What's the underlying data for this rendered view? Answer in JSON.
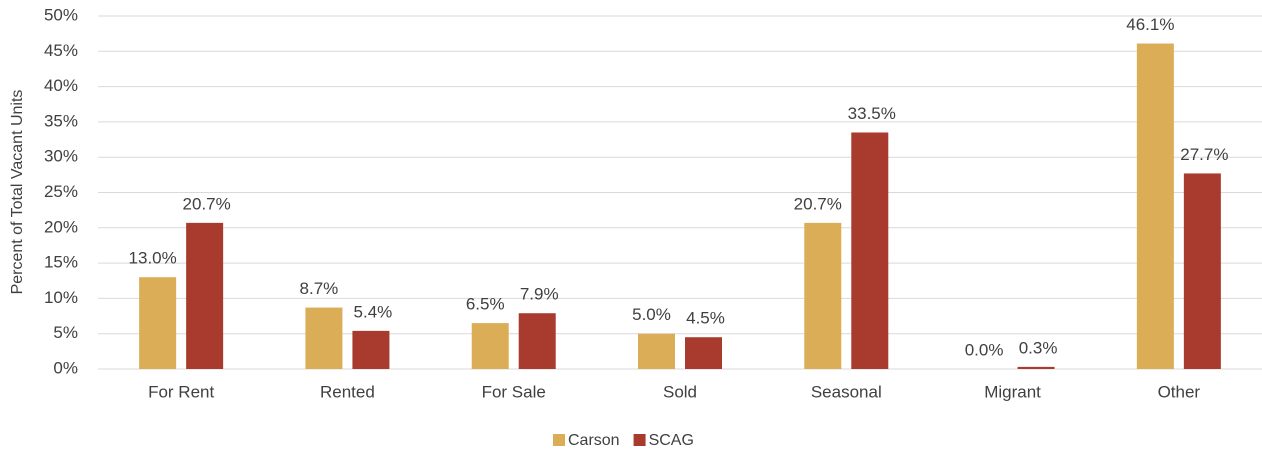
{
  "chart_data": {
    "type": "bar",
    "y_label": "Percent of Total Vacant Units",
    "categories": [
      "For Rent",
      "Rented",
      "For Sale",
      "Sold",
      "Seasonal",
      "Migrant",
      "Other"
    ],
    "series": [
      {
        "name": "Carson",
        "color": "#dbad57",
        "values": [
          13.0,
          8.7,
          6.5,
          5.0,
          20.7,
          0.0,
          46.1
        ],
        "value_labels": [
          "13.0%",
          "8.7%",
          "6.5%",
          "5.0%",
          "20.7%",
          "0.0%",
          "46.1%"
        ]
      },
      {
        "name": "SCAG",
        "color": "#a83a2e",
        "values": [
          20.7,
          5.4,
          7.9,
          4.5,
          33.5,
          0.3,
          27.7
        ],
        "value_labels": [
          "20.7%",
          "5.4%",
          "7.9%",
          "4.5%",
          "33.5%",
          "0.3%",
          "27.7%"
        ]
      }
    ],
    "ylim": [
      0,
      50
    ],
    "yticks": [
      {
        "value": 0,
        "label": "0%"
      },
      {
        "value": 5,
        "label": "5%"
      },
      {
        "value": 10,
        "label": "10%"
      },
      {
        "value": 15,
        "label": "15%"
      },
      {
        "value": 20,
        "label": "20%"
      },
      {
        "value": 25,
        "label": "25%"
      },
      {
        "value": 30,
        "label": "30%"
      },
      {
        "value": 35,
        "label": "35%"
      },
      {
        "value": 40,
        "label": "40%"
      },
      {
        "value": 45,
        "label": "45%"
      },
      {
        "value": 50,
        "label": "50%"
      }
    ],
    "grid": true,
    "legend": "bottom"
  }
}
